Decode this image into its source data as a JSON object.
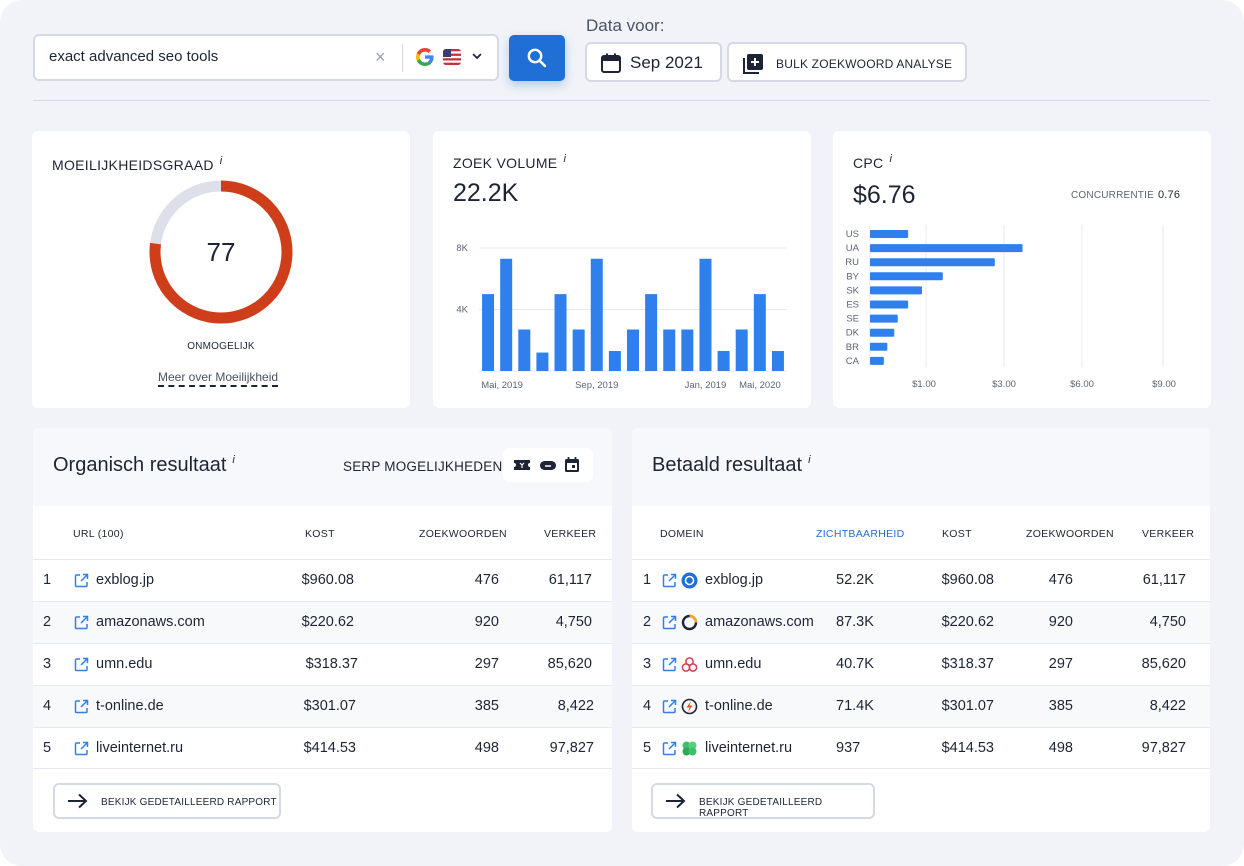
{
  "search": {
    "value": "exact advanced seo tools",
    "placeholder": "",
    "clear_glyph": "×",
    "engine_icon": "google-icon",
    "country_icon": "us-flag-icon"
  },
  "date": {
    "label": "Data voor:",
    "value": "Sep 2021"
  },
  "bulk_label": "BULK ZOEKWOORD ANALYSE",
  "difficulty": {
    "title": "MOEILIJKHEIDSGRAAD",
    "info": "i",
    "value": "77",
    "percent": 77,
    "level": "ONMOGELIJK",
    "link": "Meer over Moeilijkheid",
    "colors": {
      "fill": "#cf3e1b",
      "track": "#dde0e8"
    }
  },
  "volume": {
    "title": "ZOEK VOLUME",
    "info": "i",
    "value": "22.2K"
  },
  "cpc": {
    "title": "CPC",
    "info": "i",
    "value": "$6.76",
    "competition_label": "CONCURRENTIE",
    "competition_value": "0.76"
  },
  "chart_data": [
    {
      "type": "bar",
      "title": "ZOEK VOLUME",
      "ylim": [
        0,
        8000
      ],
      "yticks": [
        "8K",
        "4K"
      ],
      "xticks": [
        "Mai, 2019",
        "Sep, 2019",
        "Jan, 2019",
        "Mai, 2020"
      ],
      "values": [
        5000,
        7300,
        2700,
        1200,
        5000,
        2700,
        7300,
        1300,
        2700,
        5000,
        2700,
        2700,
        7300,
        1300,
        2700,
        5000,
        1300
      ],
      "color": "#2f80ed"
    },
    {
      "type": "bar",
      "orientation": "horizontal",
      "title": "CPC",
      "categories": [
        "US",
        "UA",
        "RU",
        "BY",
        "SK",
        "ES",
        "SE",
        "DK",
        "BR",
        "CA"
      ],
      "values": [
        1.1,
        4.4,
        3.6,
        2.1,
        1.5,
        1.1,
        0.8,
        0.7,
        0.5,
        0.4
      ],
      "xticks": [
        "$1.00",
        "$3.00",
        "$6.00",
        "$9.00"
      ],
      "xlim": [
        0,
        9
      ],
      "color": "#2f80ed"
    }
  ],
  "organic": {
    "title": "Organisch resultaat",
    "info": "i",
    "serp_label": "SERP MOGELIJKHEDEN:",
    "columns": [
      "URL (100)",
      "KOST",
      "ZOEKWOORDEN",
      "VERKEER"
    ],
    "rows": [
      {
        "n": "1",
        "domain": "exblog.jp",
        "cost": "$960.08",
        "keywords": "476",
        "traffic": "61,117"
      },
      {
        "n": "2",
        "domain": "amazonaws.com",
        "cost": "$220.62",
        "keywords": "920",
        "traffic": "4,750"
      },
      {
        "n": "3",
        "domain": "umn.edu",
        "cost": "$318.37",
        "keywords": "297",
        "traffic": "85,620"
      },
      {
        "n": "4",
        "domain": "t-online.de",
        "cost": "$301.07",
        "keywords": "385",
        "traffic": "8,422"
      },
      {
        "n": "5",
        "domain": "liveinternet.ru",
        "cost": "$414.53",
        "keywords": "498",
        "traffic": "97,827"
      }
    ],
    "report_label": "BEKIJK GEDETAILLEERD RAPPORT"
  },
  "paid": {
    "title": "Betaald resultaat",
    "info": "i",
    "columns": [
      "DOMEIN",
      "ZICHTBAARHEID",
      "KOST",
      "ZOEKWOORDEN",
      "VERKEER"
    ],
    "rows": [
      {
        "n": "1",
        "domain": "exblog.jp",
        "visibility": "52.2K",
        "cost": "$960.08",
        "keywords": "476",
        "traffic": "61,117"
      },
      {
        "n": "2",
        "domain": "amazonaws.com",
        "visibility": "87.3K",
        "cost": "$220.62",
        "keywords": "920",
        "traffic": "4,750"
      },
      {
        "n": "3",
        "domain": "umn.edu",
        "visibility": "40.7K",
        "cost": "$318.37",
        "keywords": "297",
        "traffic": "85,620"
      },
      {
        "n": "4",
        "domain": "t-online.de",
        "visibility": "71.4K",
        "cost": "$301.07",
        "keywords": "385",
        "traffic": "8,422"
      },
      {
        "n": "5",
        "domain": "liveinternet.ru",
        "visibility": "937",
        "cost": "$414.53",
        "keywords": "498",
        "traffic": "97,827"
      }
    ],
    "report_label": "BEKIJK GEDETAILLEERD RAPPORT"
  }
}
